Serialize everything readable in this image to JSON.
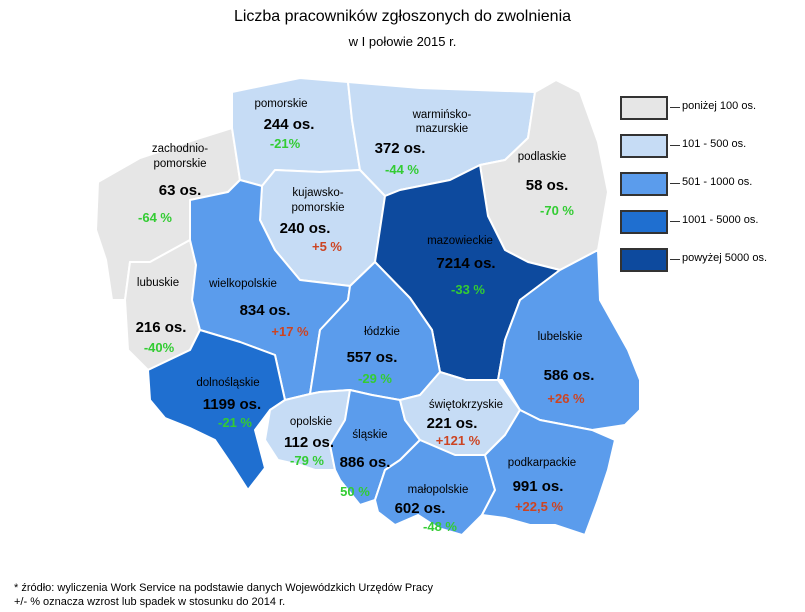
{
  "title": "Liczba pracowników zgłoszonych do zwolnienia",
  "subtitle": "w I połowie 2015 r.",
  "colors": {
    "c1": "#e6e6e6",
    "c2": "#c6dcf5",
    "c3": "#5b9cec",
    "c4": "#1f6fd0",
    "c5": "#0d4a9e",
    "negative": "#33cc33",
    "positive": "#cc4422"
  },
  "legend": [
    {
      "label": "poniżej 100 os.",
      "color": "#e6e6e6"
    },
    {
      "label": "101 - 500 os.",
      "color": "#c6dcf5"
    },
    {
      "label": "501 - 1000 os.",
      "color": "#5b9cec"
    },
    {
      "label": "1001 - 5000 os.",
      "color": "#1f6fd0"
    },
    {
      "label": "powyżej 5000 os.",
      "color": "#0d4a9e"
    }
  ],
  "regions": {
    "zachodniopomorskie": {
      "name1": "zachodnio-",
      "name2": "pomorskie",
      "count": "63 os.",
      "change": "-64 %"
    },
    "pomorskie": {
      "name": "pomorskie",
      "count": "244 os.",
      "change": "-21%"
    },
    "warminsko": {
      "name1": "warmińsko-",
      "name2": "mazurskie",
      "count": "372 os.",
      "change": "-44 %"
    },
    "podlaskie": {
      "name": "podlaskie",
      "count": "58 os.",
      "change": "-70 %"
    },
    "kujawsko": {
      "name1": "kujawsko-",
      "name2": "pomorskie",
      "count": "240 os.",
      "change": "+5 %"
    },
    "mazowieckie": {
      "name": "mazowieckie",
      "count": "7214 os.",
      "change": "-33 %"
    },
    "lubuskie": {
      "name": "lubuskie",
      "count": "216 os.",
      "change": "-40%"
    },
    "wielkopolskie": {
      "name": "wielkopolskie",
      "count": "834 os.",
      "change": "+17 %"
    },
    "lodzkie": {
      "name": "łódzkie",
      "count": "557 os.",
      "change": "-29 %"
    },
    "lubelskie": {
      "name": "lubelskie",
      "count": "586 os.",
      "change": "+26 %"
    },
    "dolnoslaskie": {
      "name": "dolnośląskie",
      "count": "1199 os.",
      "change": "-21 %"
    },
    "opolskie": {
      "name": "opolskie",
      "count": "112 os.",
      "change": "-79 %"
    },
    "slaskie": {
      "name": "śląskie",
      "count": "886 os.",
      "change": "50 %"
    },
    "swietokrzyskie": {
      "name": "świętokrzyskie",
      "count": "221 os.",
      "change": "+121 %"
    },
    "malopolskie": {
      "name": "małopolskie",
      "count": "602 os.",
      "change": "-48 %"
    },
    "podkarpackie": {
      "name": "podkarpackie",
      "count": "991 os.",
      "change": "+22,5 %"
    }
  },
  "footnote1": "* źródło: wyliczenia Work Service na podstawie danych Wojewódzkich Urzędów Pracy",
  "footnote2": "+/- % oznacza wzrost lub spadek w stosunku do 2014 r."
}
